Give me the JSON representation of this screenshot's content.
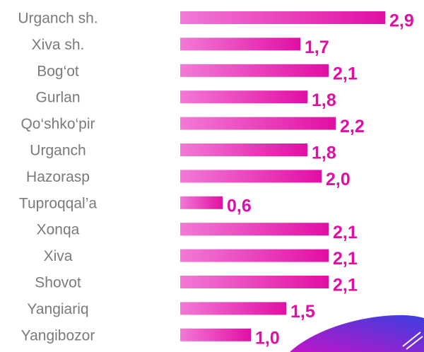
{
  "chart_data": {
    "type": "bar",
    "orientation": "horizontal",
    "categories": [
      "Urganch sh.",
      "Xiva sh.",
      "Bog‘ot",
      "Gurlan",
      "Qo‘shko‘pir",
      "Urganch",
      "Hazorasp",
      "Tuproqqal’a",
      "Xonqa",
      "Xiva",
      "Shovot",
      "Yangiariq",
      "Yangibozor"
    ],
    "values": [
      2.9,
      1.7,
      2.1,
      1.8,
      2.2,
      1.8,
      2.0,
      0.6,
      2.1,
      2.1,
      2.1,
      1.5,
      1.0
    ],
    "value_labels": [
      "2,9",
      "1,7",
      "2,1",
      "1,8",
      "2,2",
      "1,8",
      "2,0",
      "0,6",
      "2,1",
      "2,1",
      "2,1",
      "1,5",
      "1,0"
    ],
    "color": "#e20ea4"
  }
}
